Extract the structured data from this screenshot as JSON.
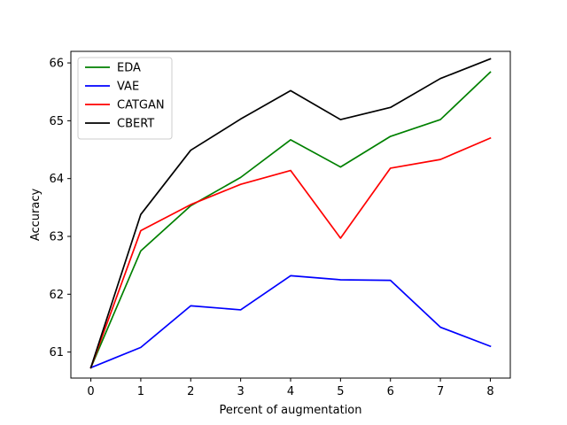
{
  "chart_data": {
    "type": "line",
    "title": "",
    "xlabel": "Percent of augmentation",
    "ylabel": "Accuracy",
    "x": [
      0,
      1,
      2,
      3,
      4,
      5,
      6,
      7,
      8
    ],
    "xlim": [
      -0.4,
      8.4
    ],
    "ylim": [
      60.55,
      66.2
    ],
    "xticks": [
      0,
      1,
      2,
      3,
      4,
      5,
      6,
      7,
      8
    ],
    "yticks": [
      61,
      62,
      63,
      64,
      65,
      66
    ],
    "grid": false,
    "legend_position": "top-left",
    "series": [
      {
        "name": "EDA",
        "color": "#008000",
        "values": [
          60.73,
          62.75,
          63.53,
          64.02,
          64.67,
          64.2,
          64.73,
          65.02,
          65.84
        ]
      },
      {
        "name": "VAE",
        "color": "#0000ff",
        "values": [
          60.73,
          61.08,
          61.8,
          61.73,
          62.32,
          62.25,
          62.24,
          61.43,
          61.1
        ]
      },
      {
        "name": "CATGAN",
        "color": "#ff0000",
        "values": [
          60.73,
          63.1,
          63.55,
          63.9,
          64.14,
          62.97,
          64.18,
          64.33,
          64.7
        ]
      },
      {
        "name": "CBERT",
        "color": "#000000",
        "values": [
          60.73,
          63.38,
          64.49,
          65.03,
          65.52,
          65.02,
          65.23,
          65.73,
          66.07
        ]
      }
    ]
  }
}
